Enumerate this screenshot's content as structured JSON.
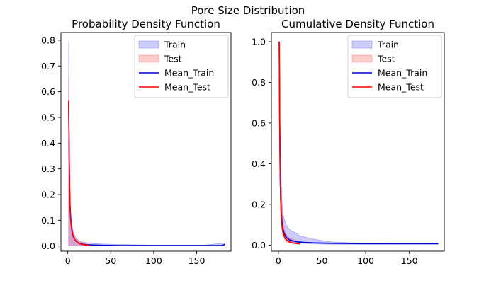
{
  "figure": {
    "suptitle": "Pore Size Distribution"
  },
  "chart_data": [
    {
      "type": "area",
      "title": "Probability Density Function",
      "xlabel": "",
      "ylabel": "",
      "xlim": [
        -8,
        190
      ],
      "ylim": [
        -0.02,
        0.83
      ],
      "xticks": [
        0,
        50,
        100,
        150
      ],
      "yticks": [
        0.0,
        0.1,
        0.2,
        0.3,
        0.4,
        0.5,
        0.6,
        0.7,
        0.8
      ],
      "grid": false,
      "legend": {
        "placement": "top-right",
        "entries": [
          "Train",
          "Test",
          "Mean_Train",
          "Mean_Test"
        ]
      },
      "bands": [
        {
          "name": "Train",
          "color": "#0000ff",
          "opacity": 0.2,
          "x": [
            1,
            1.5,
            2,
            2.5,
            3,
            4,
            5,
            6,
            8,
            10,
            13,
            17,
            22,
            30,
            40,
            60,
            80,
            100,
            130,
            160,
            183
          ],
          "lower": [
            0,
            0,
            0,
            0,
            0,
            0,
            0,
            0,
            0,
            0,
            0,
            0,
            0,
            0,
            0,
            0,
            0,
            0,
            0,
            0,
            0
          ],
          "upper": [
            0.795,
            0.55,
            0.35,
            0.22,
            0.17,
            0.11,
            0.08,
            0.06,
            0.04,
            0.03,
            0.02,
            0.016,
            0.013,
            0.01,
            0.008,
            0.006,
            0.005,
            0.004,
            0.004,
            0.004,
            0.012
          ]
        },
        {
          "name": "Test",
          "color": "#ff0000",
          "opacity": 0.2,
          "x": [
            1,
            1.5,
            2,
            2.5,
            3,
            4,
            5,
            6,
            8,
            10,
            13,
            17,
            22,
            25
          ],
          "lower": [
            0,
            0,
            0,
            0,
            0,
            0,
            0,
            0,
            0,
            0,
            0,
            0,
            0,
            0
          ],
          "upper": [
            0.66,
            0.45,
            0.28,
            0.2,
            0.15,
            0.1,
            0.07,
            0.05,
            0.035,
            0.025,
            0.018,
            0.012,
            0.008,
            0.006
          ]
        }
      ],
      "series": [
        {
          "name": "Mean_Train",
          "color": "#0000cc",
          "x": [
            1,
            1.5,
            2,
            2.5,
            3,
            4,
            5,
            6,
            8,
            10,
            13,
            17,
            22,
            30,
            40,
            60,
            80,
            100,
            130,
            160,
            180,
            183
          ],
          "y": [
            0.56,
            0.38,
            0.24,
            0.16,
            0.12,
            0.08,
            0.055,
            0.04,
            0.025,
            0.017,
            0.011,
            0.007,
            0.005,
            0.004,
            0.003,
            0.002,
            0.002,
            0.002,
            0.002,
            0.002,
            0.002,
            0.007
          ]
        },
        {
          "name": "Mean_Test",
          "color": "#ff0000",
          "x": [
            1,
            1.5,
            2,
            2.5,
            3,
            4,
            5,
            6,
            8,
            10,
            13,
            17,
            22,
            25
          ],
          "y": [
            0.565,
            0.38,
            0.24,
            0.16,
            0.12,
            0.08,
            0.055,
            0.04,
            0.025,
            0.017,
            0.01,
            0.006,
            0.004,
            0.003
          ]
        }
      ]
    },
    {
      "type": "area",
      "title": "Cumulative Density Function",
      "xlabel": "",
      "ylabel": "",
      "xlim": [
        -8,
        190
      ],
      "ylim": [
        -0.03,
        1.045
      ],
      "xticks": [
        0,
        50,
        100,
        150
      ],
      "yticks": [
        0.0,
        0.2,
        0.4,
        0.6,
        0.8,
        1.0
      ],
      "grid": false,
      "legend": {
        "placement": "top-right",
        "entries": [
          "Train",
          "Test",
          "Mean_Train",
          "Mean_Test"
        ]
      },
      "bands": [
        {
          "name": "Train",
          "color": "#0000ff",
          "opacity": 0.2,
          "x": [
            1,
            1.5,
            2,
            2.5,
            3,
            4,
            5,
            6,
            8,
            10,
            12,
            15,
            20,
            25,
            30,
            40,
            50,
            60,
            80,
            100,
            130,
            160,
            183
          ],
          "lower": [
            1.0,
            0.55,
            0.3,
            0.2,
            0.14,
            0.09,
            0.065,
            0.05,
            0.035,
            0.025,
            0.02,
            0.015,
            0.012,
            0.01,
            0.008,
            0.006,
            0.005,
            0.004,
            0.004,
            0.004,
            0.004,
            0.004,
            0.004
          ],
          "upper": [
            1.0,
            0.9,
            0.6,
            0.45,
            0.34,
            0.22,
            0.17,
            0.14,
            0.11,
            0.09,
            0.08,
            0.07,
            0.06,
            0.045,
            0.04,
            0.03,
            0.022,
            0.016,
            0.012,
            0.01,
            0.009,
            0.008,
            0.007
          ]
        },
        {
          "name": "Test",
          "color": "#ff0000",
          "opacity": 0.2,
          "x": [
            1,
            1.5,
            2,
            2.5,
            3,
            4,
            5,
            6,
            8,
            10,
            13,
            17,
            22,
            25
          ],
          "lower": [
            1.0,
            0.6,
            0.3,
            0.18,
            0.12,
            0.07,
            0.05,
            0.035,
            0.022,
            0.015,
            0.01,
            0.007,
            0.005,
            0.004
          ],
          "upper": [
            1.0,
            0.9,
            0.6,
            0.42,
            0.3,
            0.18,
            0.12,
            0.09,
            0.06,
            0.045,
            0.035,
            0.028,
            0.02,
            0.015
          ]
        }
      ],
      "series": [
        {
          "name": "Mean_Train",
          "color": "#0000cc",
          "x": [
            1,
            1.5,
            2,
            2.5,
            3,
            4,
            5,
            6,
            8,
            10,
            13,
            17,
            22,
            30,
            40,
            60,
            80,
            100,
            130,
            160,
            183
          ],
          "y": [
            1.0,
            0.6,
            0.36,
            0.25,
            0.18,
            0.12,
            0.085,
            0.065,
            0.045,
            0.034,
            0.025,
            0.02,
            0.016,
            0.013,
            0.011,
            0.009,
            0.008,
            0.007,
            0.007,
            0.007,
            0.007
          ]
        },
        {
          "name": "Mean_Test",
          "color": "#ff0000",
          "x": [
            1,
            1.5,
            2,
            2.5,
            3,
            4,
            5,
            6,
            8,
            10,
            13,
            17,
            22,
            25
          ],
          "y": [
            1.0,
            0.62,
            0.36,
            0.24,
            0.17,
            0.1,
            0.07,
            0.05,
            0.032,
            0.022,
            0.015,
            0.01,
            0.007,
            0.006
          ]
        }
      ]
    }
  ]
}
